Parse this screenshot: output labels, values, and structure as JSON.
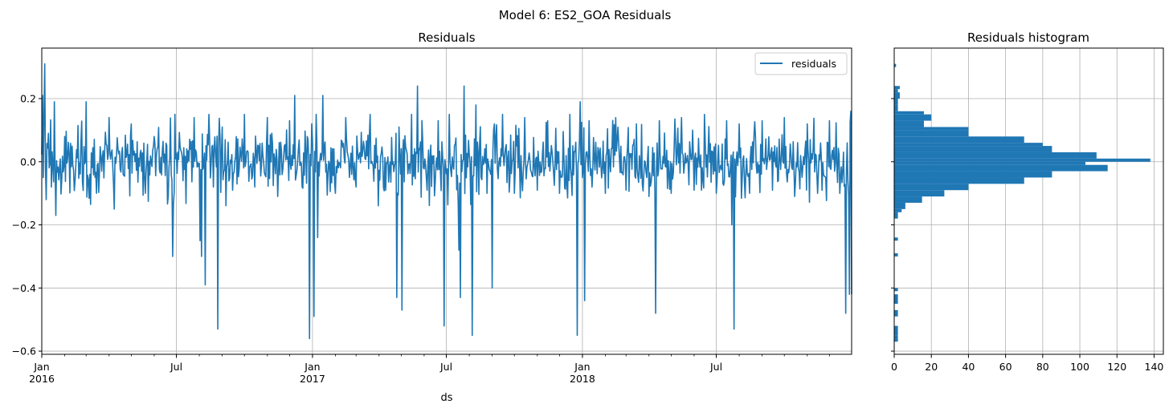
{
  "figure": {
    "suptitle": "Model 6: ES2_GOA Residuals"
  },
  "chart_data": [
    {
      "type": "line",
      "title": "Residuals",
      "xlabel": "ds",
      "ylabel": "",
      "xlim": [
        "2016-01-01",
        "2018-12-31"
      ],
      "ylim": [
        -0.61,
        0.36
      ],
      "grid": true,
      "legend": {
        "placement": "top-right",
        "entries": [
          "residuals"
        ]
      },
      "series_color": "#1f77b4",
      "x_ticks": [
        {
          "date": "2016-01-01",
          "label": "Jan",
          "sublabel": "2016"
        },
        {
          "date": "2016-07-01",
          "label": "Jul",
          "sublabel": ""
        },
        {
          "date": "2017-01-01",
          "label": "Jan",
          "sublabel": "2017"
        },
        {
          "date": "2017-07-01",
          "label": "Jul",
          "sublabel": ""
        },
        {
          "date": "2018-01-01",
          "label": "Jan",
          "sublabel": "2018"
        },
        {
          "date": "2018-07-01",
          "label": "Jul",
          "sublabel": ""
        }
      ],
      "y_ticks": [
        0.2,
        0.0,
        -0.2,
        -0.4,
        -0.6
      ],
      "y_tick_labels": [
        "0.2",
        "0.0",
        "−0.2",
        "−0.4",
        "−0.6"
      ],
      "series": [
        {
          "name": "residuals",
          "points": [
            [
              "2016-01-02",
              0.21
            ],
            [
              "2016-01-03",
              -0.05
            ],
            [
              "2016-01-04",
              0.15
            ],
            [
              "2016-01-05",
              0.31
            ],
            [
              "2016-01-07",
              -0.12
            ],
            [
              "2016-01-10",
              0.09
            ],
            [
              "2016-01-14",
              -0.08
            ],
            [
              "2016-01-18",
              0.19
            ],
            [
              "2016-01-20",
              -0.17
            ],
            [
              "2016-02-01",
              0.08
            ],
            [
              "2016-02-15",
              -0.06
            ],
            [
              "2016-03-01",
              0.19
            ],
            [
              "2016-03-15",
              -0.1
            ],
            [
              "2016-04-01",
              0.14
            ],
            [
              "2016-04-08",
              -0.15
            ],
            [
              "2016-05-01",
              0.12
            ],
            [
              "2016-05-20",
              -0.1
            ],
            [
              "2016-06-01",
              0.08
            ],
            [
              "2016-06-20",
              -0.11
            ],
            [
              "2016-06-26",
              -0.3
            ],
            [
              "2016-06-29",
              0.15
            ],
            [
              "2016-07-10",
              -0.06
            ],
            [
              "2016-07-25",
              0.14
            ],
            [
              "2016-08-02",
              -0.25
            ],
            [
              "2016-08-04",
              -0.3
            ],
            [
              "2016-08-09",
              -0.39
            ],
            [
              "2016-08-14",
              0.15
            ],
            [
              "2016-08-20",
              -0.08
            ],
            [
              "2016-08-26",
              -0.53
            ],
            [
              "2016-09-01",
              0.11
            ],
            [
              "2016-09-15",
              -0.09
            ],
            [
              "2016-10-01",
              0.15
            ],
            [
              "2016-10-15",
              -0.08
            ],
            [
              "2016-11-01",
              0.14
            ],
            [
              "2016-11-15",
              -0.11
            ],
            [
              "2016-12-01",
              0.13
            ],
            [
              "2016-12-08",
              0.21
            ],
            [
              "2016-12-18",
              -0.08
            ],
            [
              "2016-12-28",
              -0.56
            ],
            [
              "2016-12-31",
              0.12
            ],
            [
              "2017-01-03",
              -0.49
            ],
            [
              "2017-01-06",
              0.15
            ],
            [
              "2017-01-08",
              -0.24
            ],
            [
              "2017-01-15",
              0.21
            ],
            [
              "2017-02-01",
              -0.1
            ],
            [
              "2017-02-15",
              0.14
            ],
            [
              "2017-03-01",
              -0.08
            ],
            [
              "2017-03-20",
              0.15
            ],
            [
              "2017-04-10",
              -0.09
            ],
            [
              "2017-04-25",
              -0.43
            ],
            [
              "2017-04-28",
              0.11
            ],
            [
              "2017-05-02",
              -0.47
            ],
            [
              "2017-05-15",
              0.15
            ],
            [
              "2017-05-23",
              0.24
            ],
            [
              "2017-06-05",
              -0.09
            ],
            [
              "2017-06-20",
              0.13
            ],
            [
              "2017-06-28",
              -0.52
            ],
            [
              "2017-07-05",
              0.15
            ],
            [
              "2017-07-18",
              -0.28
            ],
            [
              "2017-07-20",
              -0.43
            ],
            [
              "2017-07-25",
              0.24
            ],
            [
              "2017-08-05",
              -0.55
            ],
            [
              "2017-08-10",
              0.18
            ],
            [
              "2017-08-25",
              -0.1
            ],
            [
              "2017-09-01",
              -0.4
            ],
            [
              "2017-09-15",
              0.15
            ],
            [
              "2017-10-01",
              -0.1
            ],
            [
              "2017-10-15",
              0.14
            ],
            [
              "2017-11-01",
              -0.09
            ],
            [
              "2017-11-15",
              0.13
            ],
            [
              "2017-12-01",
              -0.1
            ],
            [
              "2017-12-15",
              0.15
            ],
            [
              "2017-12-25",
              -0.55
            ],
            [
              "2017-12-29",
              0.19
            ],
            [
              "2018-01-04",
              -0.44
            ],
            [
              "2018-01-10",
              0.13
            ],
            [
              "2018-02-01",
              -0.1
            ],
            [
              "2018-02-15",
              0.14
            ],
            [
              "2018-03-01",
              -0.09
            ],
            [
              "2018-03-15",
              0.12
            ],
            [
              "2018-04-01",
              -0.11
            ],
            [
              "2018-04-10",
              -0.48
            ],
            [
              "2018-04-15",
              0.13
            ],
            [
              "2018-05-01",
              -0.1
            ],
            [
              "2018-05-15",
              0.14
            ],
            [
              "2018-06-01",
              -0.09
            ],
            [
              "2018-06-15",
              0.15
            ],
            [
              "2018-07-01",
              -0.1
            ],
            [
              "2018-07-15",
              0.13
            ],
            [
              "2018-07-22",
              -0.2
            ],
            [
              "2018-07-25",
              -0.53
            ],
            [
              "2018-08-01",
              0.12
            ],
            [
              "2018-08-15",
              -0.1
            ],
            [
              "2018-09-01",
              0.13
            ],
            [
              "2018-09-15",
              -0.09
            ],
            [
              "2018-10-01",
              0.14
            ],
            [
              "2018-10-15",
              -0.11
            ],
            [
              "2018-11-01",
              0.12
            ],
            [
              "2018-11-15",
              -0.1
            ],
            [
              "2018-12-01",
              0.13
            ],
            [
              "2018-12-15",
              -0.1
            ],
            [
              "2018-12-23",
              -0.48
            ],
            [
              "2018-12-25",
              0.06
            ],
            [
              "2018-12-28",
              -0.42
            ],
            [
              "2018-12-30",
              0.16
            ],
            [
              "2018-12-31",
              -0.42
            ]
          ]
        }
      ]
    },
    {
      "type": "bar",
      "orientation": "horizontal",
      "title": "Residuals histogram",
      "xlabel": "",
      "ylabel": "",
      "xlim": [
        0,
        145
      ],
      "ylim": [
        -0.61,
        0.36
      ],
      "grid": true,
      "bar_color": "#1f77b4",
      "x_ticks": [
        0,
        20,
        40,
        60,
        80,
        100,
        120,
        140
      ],
      "bins": [
        {
          "lo": 0.3,
          "hi": 0.31,
          "count": 1
        },
        {
          "lo": 0.23,
          "hi": 0.24,
          "count": 3
        },
        {
          "lo": 0.22,
          "hi": 0.23,
          "count": 2
        },
        {
          "lo": 0.2,
          "hi": 0.22,
          "count": 3
        },
        {
          "lo": 0.18,
          "hi": 0.2,
          "count": 2
        },
        {
          "lo": 0.16,
          "hi": 0.18,
          "count": 2
        },
        {
          "lo": 0.15,
          "hi": 0.16,
          "count": 16
        },
        {
          "lo": 0.13,
          "hi": 0.15,
          "count": 20
        },
        {
          "lo": 0.11,
          "hi": 0.13,
          "count": 16
        },
        {
          "lo": 0.1,
          "hi": 0.11,
          "count": 40
        },
        {
          "lo": 0.08,
          "hi": 0.1,
          "count": 40
        },
        {
          "lo": 0.06,
          "hi": 0.08,
          "count": 70
        },
        {
          "lo": 0.05,
          "hi": 0.06,
          "count": 80
        },
        {
          "lo": 0.03,
          "hi": 0.05,
          "count": 85
        },
        {
          "lo": 0.01,
          "hi": 0.03,
          "count": 109
        },
        {
          "lo": 0.0,
          "hi": 0.01,
          "count": 138
        },
        {
          "lo": -0.01,
          "hi": 0.0,
          "count": 103
        },
        {
          "lo": -0.03,
          "hi": -0.01,
          "count": 115
        },
        {
          "lo": -0.05,
          "hi": -0.03,
          "count": 85
        },
        {
          "lo": -0.07,
          "hi": -0.05,
          "count": 70
        },
        {
          "lo": -0.09,
          "hi": -0.07,
          "count": 40
        },
        {
          "lo": -0.11,
          "hi": -0.09,
          "count": 27
        },
        {
          "lo": -0.13,
          "hi": -0.11,
          "count": 15
        },
        {
          "lo": -0.15,
          "hi": -0.13,
          "count": 6
        },
        {
          "lo": -0.16,
          "hi": -0.15,
          "count": 4
        },
        {
          "lo": -0.18,
          "hi": -0.16,
          "count": 2
        },
        {
          "lo": -0.25,
          "hi": -0.24,
          "count": 2
        },
        {
          "lo": -0.3,
          "hi": -0.29,
          "count": 2
        },
        {
          "lo": -0.41,
          "hi": -0.4,
          "count": 2
        },
        {
          "lo": -0.45,
          "hi": -0.42,
          "count": 2
        },
        {
          "lo": -0.49,
          "hi": -0.47,
          "count": 2
        },
        {
          "lo": -0.55,
          "hi": -0.52,
          "count": 2
        },
        {
          "lo": -0.57,
          "hi": -0.55,
          "count": 2
        }
      ]
    }
  ]
}
